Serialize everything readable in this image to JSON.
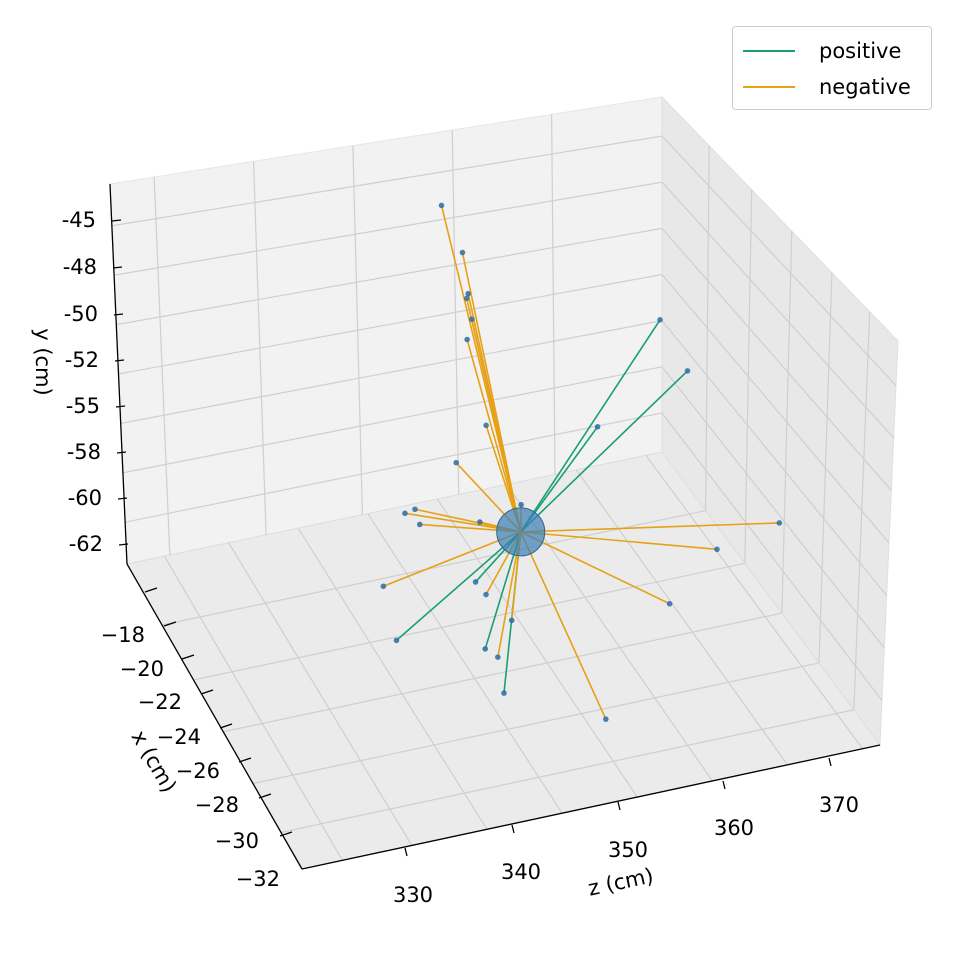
{
  "chart_data": {
    "type": "scatter3d-lines",
    "xlabel": "x (cm)",
    "ylabel": "y (cm)",
    "zlabel": "z (cm)",
    "xlim": [
      -32,
      -17
    ],
    "ylim": [
      -63,
      -44
    ],
    "zlim": [
      325,
      375
    ],
    "x_ticks": [
      "−18",
      "−20",
      "−22",
      "−24",
      "−26",
      "−28",
      "−30",
      "−32"
    ],
    "y_ticks": [
      "-45",
      "-48",
      "-50",
      "-52",
      "-55",
      "-58",
      "-60",
      "-62"
    ],
    "z_ticks": [
      "330",
      "340",
      "350",
      "360",
      "370"
    ],
    "legend_position": "top-right",
    "center": {
      "x": -22.5,
      "y": -61.0,
      "z": 338.0
    },
    "series": [
      {
        "name": "positive",
        "color": "#1a9e77",
        "endpoints": [
          {
            "x": -17.5,
            "y": -54.0,
            "z": 330.5
          },
          {
            "x": -17.6,
            "y": -54.5,
            "z": 337.5
          },
          {
            "x": -20.0,
            "y": -57.0,
            "z": 336.0
          },
          {
            "x": -24.5,
            "y": -61.0,
            "z": 344.0
          },
          {
            "x": -25.0,
            "y": -62.5,
            "z": 350.0
          },
          {
            "x": -25.5,
            "y": -62.0,
            "z": 358.5
          },
          {
            "x": -27.0,
            "y": -62.5,
            "z": 346.0
          }
        ]
      },
      {
        "name": "negative",
        "color": "#e6a116",
        "endpoints": [
          {
            "x": -22.5,
            "y": -49.5,
            "z": 327.0
          },
          {
            "x": -22.0,
            "y": -50.0,
            "z": 318.0
          },
          {
            "x": -22.0,
            "y": -53.0,
            "z": 323.5
          },
          {
            "x": -22.5,
            "y": -51.8,
            "z": 327.5
          },
          {
            "x": -22.5,
            "y": -52.6,
            "z": 328.5
          },
          {
            "x": -22.6,
            "y": -53.8,
            "z": 328.0
          },
          {
            "x": -22.3,
            "y": -58.2,
            "z": 329.0
          },
          {
            "x": -22.5,
            "y": -62.0,
            "z": 323.0
          },
          {
            "x": -24.5,
            "y": -61.5,
            "z": 330.0
          },
          {
            "x": -24.5,
            "y": -62.0,
            "z": 331.0
          },
          {
            "x": -24.5,
            "y": -62.5,
            "z": 327.5
          },
          {
            "x": -23.0,
            "y": -62.0,
            "z": 332.5
          },
          {
            "x": -22.0,
            "y": -61.0,
            "z": 334.0
          },
          {
            "x": -19.0,
            "y": -58.0,
            "z": 355.0
          },
          {
            "x": -20.5,
            "y": -60.0,
            "z": 356.0
          },
          {
            "x": -23.5,
            "y": -62.0,
            "z": 365.5
          },
          {
            "x": -24.0,
            "y": -62.0,
            "z": 348.0
          },
          {
            "x": -24.0,
            "y": -62.5,
            "z": 342.0
          },
          {
            "x": -26.5,
            "y": -62.0,
            "z": 339.0
          },
          {
            "x": -25.0,
            "y": -62.0,
            "z": 353.0
          },
          {
            "x": -17.8,
            "y": -55.5,
            "z": 360.0
          }
        ]
      }
    ]
  }
}
